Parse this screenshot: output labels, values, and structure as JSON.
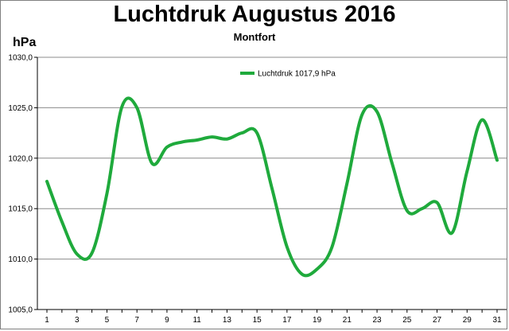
{
  "chart_data": {
    "type": "line",
    "title": "Luchtdruk Augustus 2016",
    "subtitle": "Montfort",
    "ylabel": "hPa",
    "xlabel": "",
    "ylim": [
      1005.0,
      1030.0
    ],
    "yticks": [
      "1005,0",
      "1010,0",
      "1015,0",
      "1020,0",
      "1025,0",
      "1030,0"
    ],
    "xticks": [
      "1",
      "3",
      "5",
      "7",
      "9",
      "11",
      "13",
      "15",
      "17",
      "19",
      "21",
      "23",
      "25",
      "27",
      "29",
      "31"
    ],
    "grid": true,
    "legend_position": "top-center",
    "series": [
      {
        "name": "Luchtdruk 1017,9 hPa",
        "color": "#1faa3c",
        "x": [
          1,
          2,
          3,
          4,
          5,
          6,
          7,
          8,
          9,
          10,
          11,
          12,
          13,
          14,
          15,
          16,
          17,
          18,
          19,
          20,
          21,
          22,
          23,
          24,
          25,
          26,
          27,
          28,
          29,
          30,
          31
        ],
        "values": [
          1017.7,
          1013.7,
          1010.5,
          1010.6,
          1016.5,
          1025.1,
          1025.0,
          1019.5,
          1021.1,
          1021.6,
          1021.8,
          1022.1,
          1021.9,
          1022.5,
          1022.5,
          1017.0,
          1011.2,
          1008.5,
          1009.0,
          1011.2,
          1017.5,
          1024.3,
          1024.6,
          1019.5,
          1014.8,
          1015.0,
          1015.6,
          1012.6,
          1018.7,
          1023.8,
          1019.8
        ]
      }
    ]
  }
}
